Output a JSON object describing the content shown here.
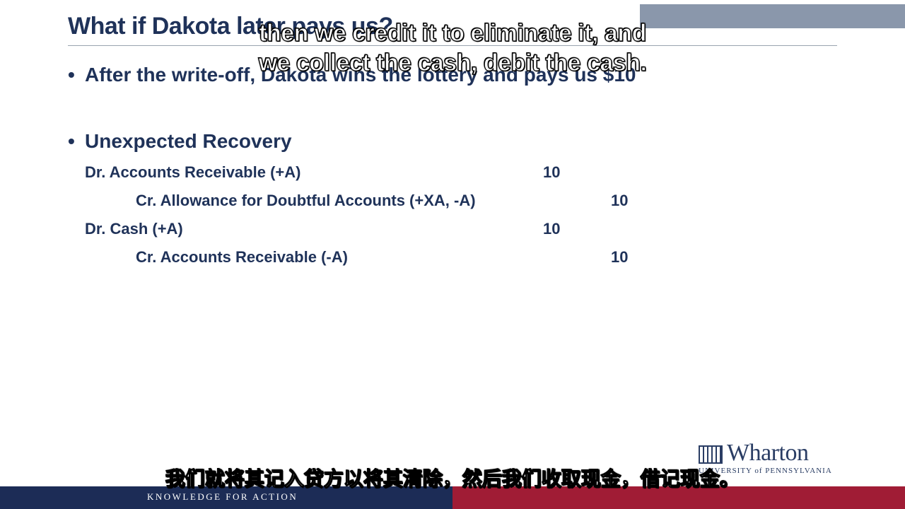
{
  "slide": {
    "title": "What if Dakota later pays us?",
    "bullets": [
      "After the write-off, Dakota wins the lottery and pays us $10",
      "Unexpected Recovery"
    ],
    "journal": [
      {
        "account": "Dr. Accounts Receivable (+A)",
        "debit": "10",
        "credit": ""
      },
      {
        "account": "Cr. Allowance for Doubtful Accounts (+XA, -A)",
        "debit": "",
        "credit": "10"
      },
      {
        "account": "Dr. Cash (+A)",
        "debit": "10",
        "credit": ""
      },
      {
        "account": "Cr. Accounts Receivable (-A)",
        "debit": "",
        "credit": "10"
      }
    ]
  },
  "branding": {
    "logo_word": "Wharton",
    "logo_sub": "UNIVERSITY of PENNSYLVANIA",
    "tagline": "KNOWLEDGE FOR ACTION"
  },
  "subtitles": {
    "en_line1": "then we credit it to eliminate it, and",
    "en_line2": "we collect the cash, debit the cash.",
    "cn": "我们就将其记入贷方以将其清除，然后我们收取现金，借记现金。"
  },
  "colors": {
    "navy": "#1f3259",
    "footer_navy": "#1c2c56",
    "footer_red": "#a01c35"
  }
}
